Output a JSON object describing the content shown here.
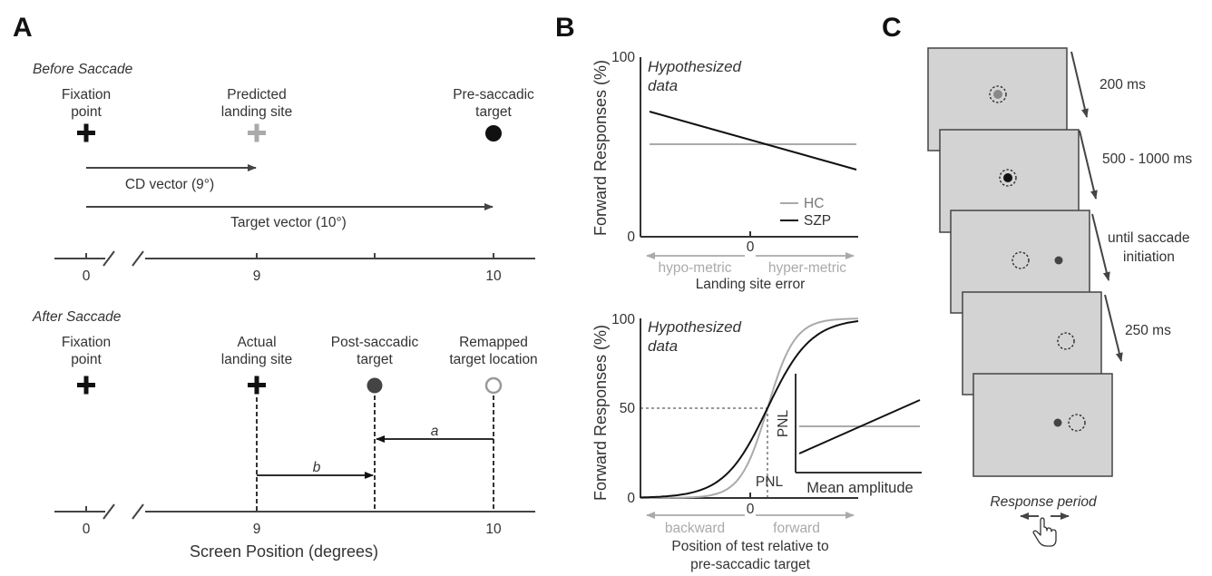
{
  "panels": {
    "A": "A",
    "B": "B",
    "C": "C"
  },
  "panelA": {
    "before_title": "Before Saccade",
    "fixation": [
      "Fixation",
      "point"
    ],
    "predicted": [
      "Predicted",
      "landing site"
    ],
    "presaccadic": [
      "Pre-saccadic",
      "target"
    ],
    "cd_vector": "CD vector (9°)",
    "target_vector": "Target vector (10°)",
    "ticks": [
      "0",
      "9",
      "10"
    ],
    "after_title": "After Saccade",
    "actual": [
      "Actual",
      "landing site"
    ],
    "postsaccadic": [
      "Post-saccadic",
      "target"
    ],
    "remapped": [
      "Remapped",
      "target location"
    ],
    "arrow_a": "a",
    "arrow_b": "b",
    "xlabel": "Screen Position (degrees)"
  },
  "panelB_top": {
    "ylabel": "Forward Responses (%)",
    "y_top": "100",
    "y_bottom": "0",
    "x_zero": "0",
    "annotation": [
      "Hypothesized",
      "data"
    ],
    "x_left": "hypo-metric",
    "x_right": "hyper-metric",
    "xlabel": "Landing site error",
    "legend": [
      {
        "name": "HC",
        "color": "#aaaaaa"
      },
      {
        "name": "SZP",
        "color": "#111111"
      }
    ]
  },
  "panelB_bottom": {
    "ylabel": "Forward Responses (%)",
    "y_top": "100",
    "y_mid": "50",
    "y_bottom": "0",
    "x_zero": "0",
    "annotation": [
      "Hypothesized",
      "data"
    ],
    "pnl": "PNL",
    "x_left": "backward",
    "x_right": "forward",
    "xlabel": [
      "Position of test relative to",
      "pre-saccadic target"
    ],
    "inset_ylabel": "PNL",
    "inset_xlabel": "Mean amplitude"
  },
  "panelC": {
    "durations": [
      "200 ms",
      "500 - 1000 ms",
      "until saccade",
      "initiation",
      "250 ms"
    ],
    "response": "Response period"
  },
  "colors": {
    "hc": "#aaaaaa",
    "szp": "#111111",
    "screen": "#d3d3d3",
    "axis": "#444444"
  }
}
